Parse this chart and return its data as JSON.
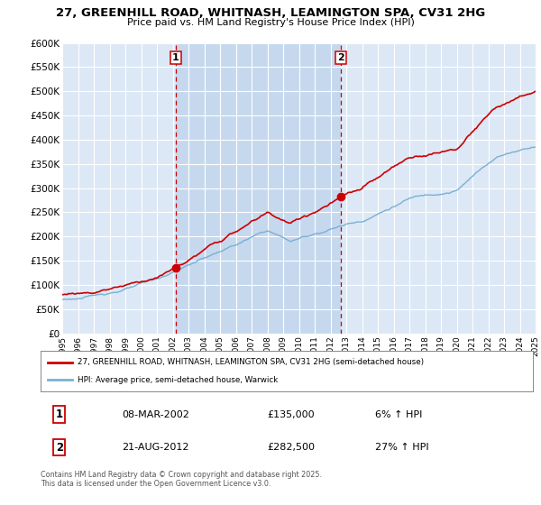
{
  "title1": "27, GREENHILL ROAD, WHITNASH, LEAMINGTON SPA, CV31 2HG",
  "title2": "Price paid vs. HM Land Registry's House Price Index (HPI)",
  "ylabel_ticks": [
    "£0",
    "£50K",
    "£100K",
    "£150K",
    "£200K",
    "£250K",
    "£300K",
    "£350K",
    "£400K",
    "£450K",
    "£500K",
    "£550K",
    "£600K"
  ],
  "ytick_values": [
    0,
    50000,
    100000,
    150000,
    200000,
    250000,
    300000,
    350000,
    400000,
    450000,
    500000,
    550000,
    600000
  ],
  "color_price": "#cc0000",
  "color_hpi": "#7ab0d4",
  "color_dashed": "#cc0000",
  "transaction1_date": "08-MAR-2002",
  "transaction1_price": 135000,
  "transaction1_hpi_text": "6% ↑ HPI",
  "transaction1_x": 2002.19,
  "transaction2_date": "21-AUG-2012",
  "transaction2_price": 282500,
  "transaction2_hpi_text": "27% ↑ HPI",
  "transaction2_x": 2012.64,
  "legend_label1": "27, GREENHILL ROAD, WHITNASH, LEAMINGTON SPA, CV31 2HG (semi-detached house)",
  "legend_label2": "HPI: Average price, semi-detached house, Warwick",
  "footnote": "Contains HM Land Registry data © Crown copyright and database right 2025.\nThis data is licensed under the Open Government Licence v3.0.",
  "bg_color": "#ffffff",
  "plot_bg_color": "#dce8f5",
  "highlight_color": "#c5d8ee",
  "grid_color": "#ffffff"
}
